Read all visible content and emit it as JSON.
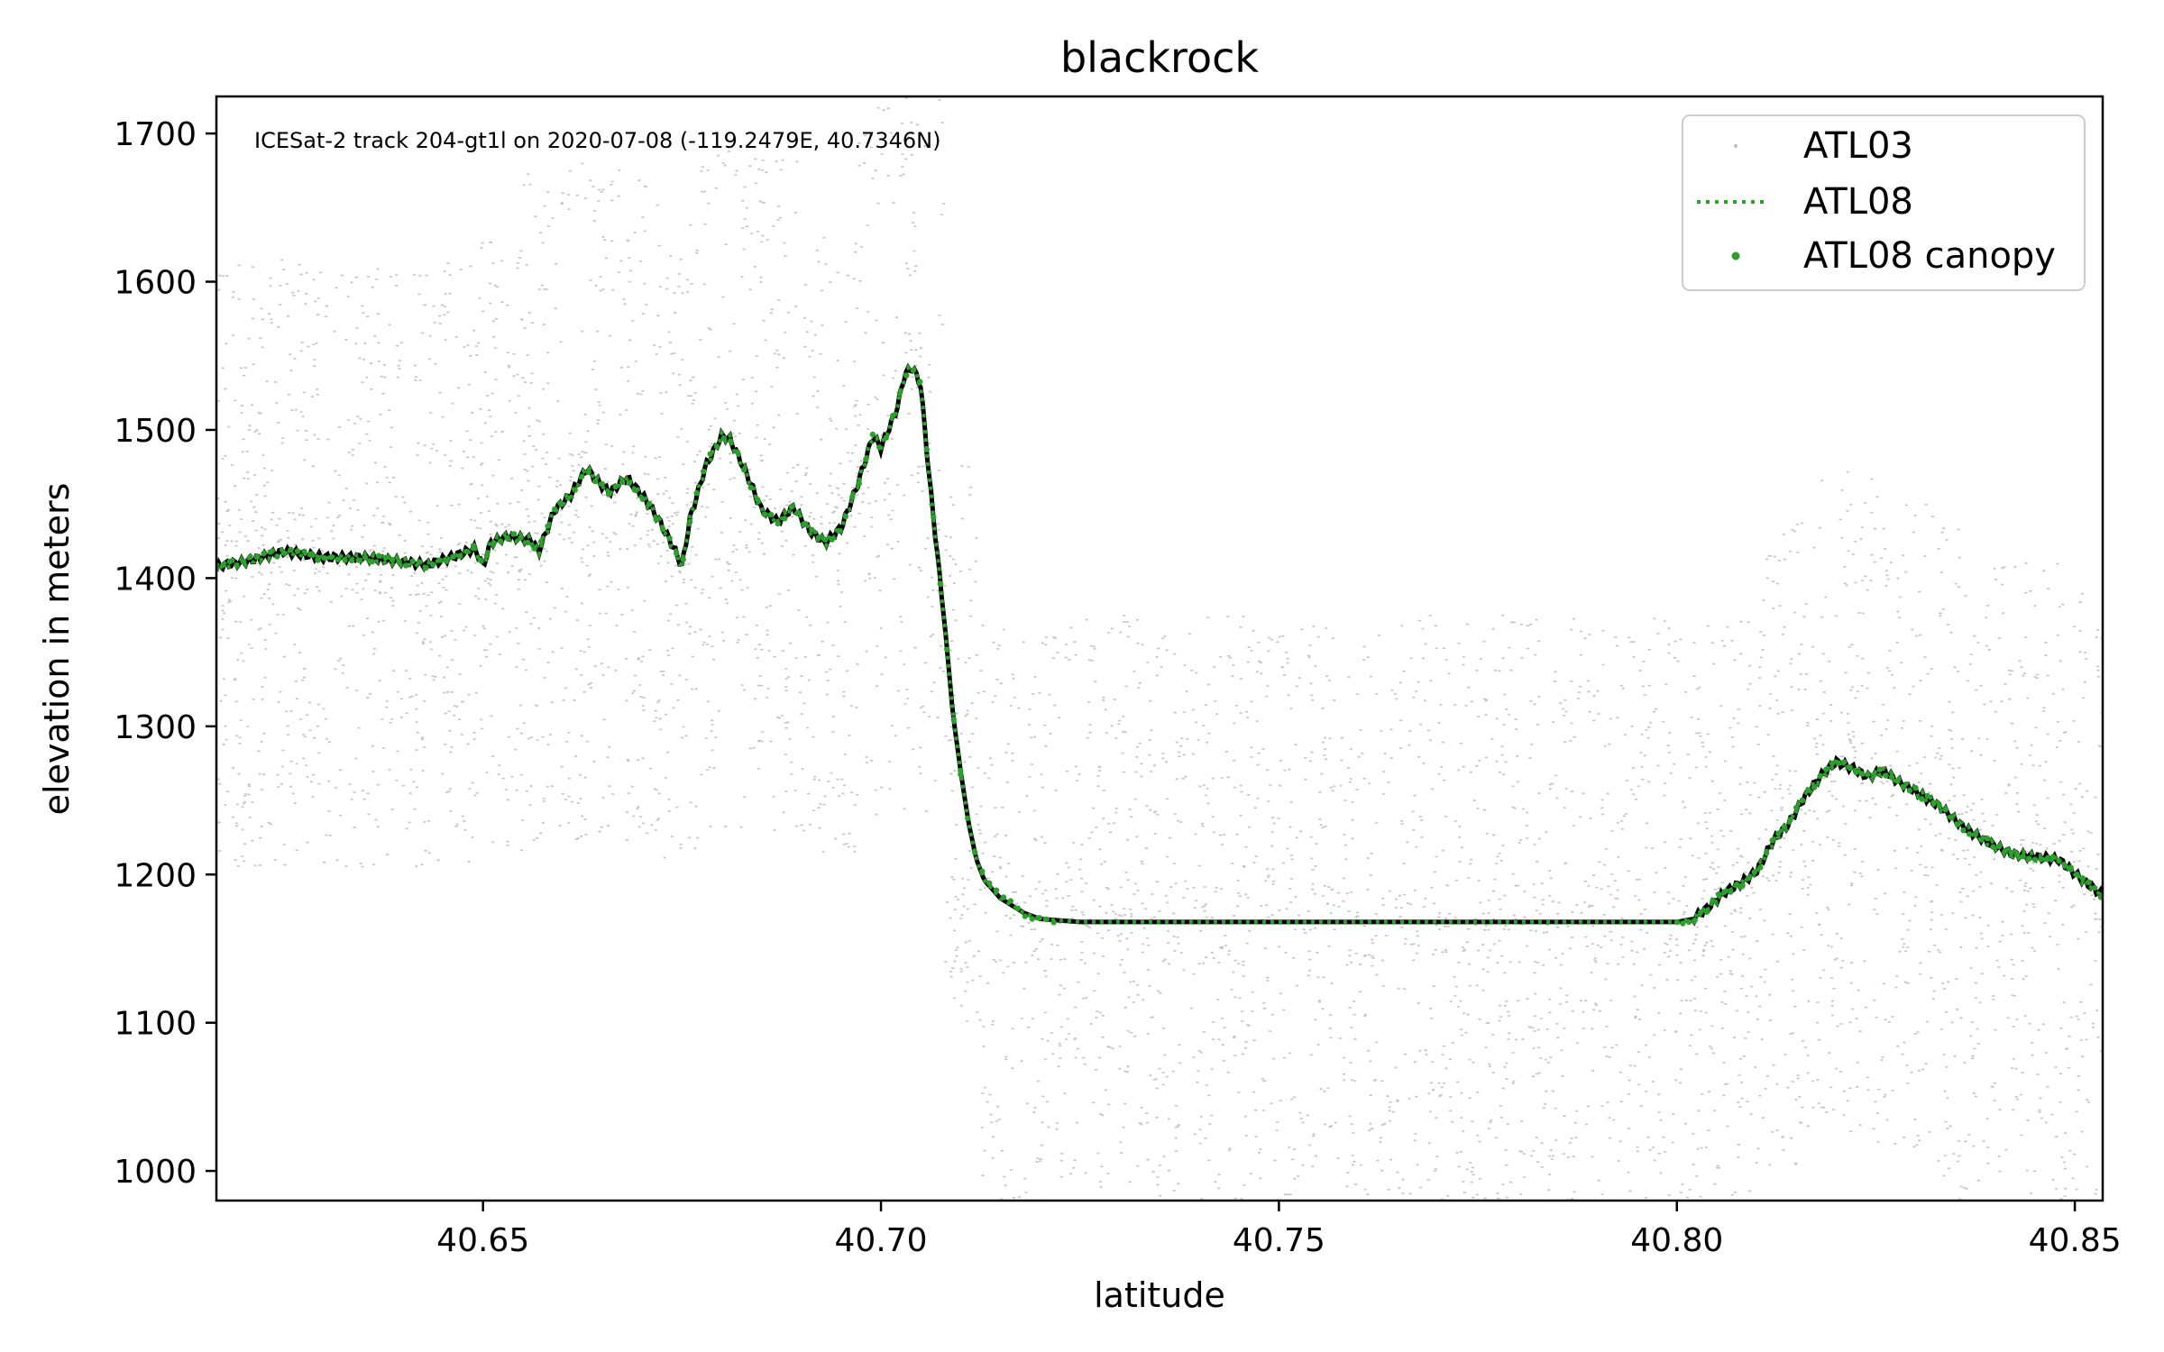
{
  "chart_data": {
    "type": "scatter",
    "title": "blackrock",
    "xlabel": "latitude",
    "ylabel": "elevation in meters",
    "annotation": "ICESat-2 track 204-gt1l on 2020-07-08 (-119.2479E, 40.7346N)",
    "xlim": [
      40.6165,
      40.8535
    ],
    "ylim": [
      980,
      1725
    ],
    "xticks": [
      40.65,
      40.7,
      40.75,
      40.8,
      40.85
    ],
    "xtick_labels": [
      "40.65",
      "40.70",
      "40.75",
      "40.80",
      "40.85"
    ],
    "yticks": [
      1000,
      1100,
      1200,
      1300,
      1400,
      1500,
      1600,
      1700
    ],
    "ytick_labels": [
      "1000",
      "1100",
      "1200",
      "1300",
      "1400",
      "1500",
      "1600",
      "1700"
    ],
    "grid": false,
    "legend_position": "top-right",
    "colors": {
      "atl03": "#808080",
      "atl08": "#2ca02c",
      "ground": "#000000"
    },
    "series": [
      {
        "name": "ATL03",
        "kind": "scatter-cloud",
        "description_only": true
      },
      {
        "name": "ATL08",
        "kind": "dotted-line"
      },
      {
        "name": "ATL08 canopy",
        "kind": "points"
      }
    ],
    "profile": {
      "x": [
        40.6165,
        40.62,
        40.625,
        40.63,
        40.635,
        40.64,
        40.643,
        40.646,
        40.649,
        40.65,
        40.651,
        40.653,
        40.656,
        40.657,
        40.659,
        40.661,
        40.663,
        40.665,
        40.666,
        40.668,
        40.67,
        40.672,
        40.674,
        40.675,
        40.676,
        40.678,
        40.68,
        40.681,
        40.683,
        40.685,
        40.687,
        40.689,
        40.691,
        40.693,
        40.695,
        40.697,
        40.699,
        40.7,
        40.702,
        40.703,
        40.704,
        40.705,
        40.706,
        40.707,
        40.708,
        40.709,
        40.71,
        40.711,
        40.712,
        40.713,
        40.715,
        40.718,
        40.72,
        40.725,
        40.73,
        40.74,
        40.75,
        40.76,
        40.77,
        40.78,
        40.79,
        40.8,
        40.802,
        40.804,
        40.806,
        40.808,
        40.81,
        40.812,
        40.814,
        40.816,
        40.818,
        40.82,
        40.822,
        40.824,
        40.826,
        40.828,
        40.83,
        40.833,
        40.836,
        40.839,
        40.842,
        40.845,
        40.848,
        40.851,
        40.8535
      ],
      "y": [
        1408,
        1411,
        1418,
        1414,
        1414,
        1411,
        1409,
        1414,
        1420,
        1408,
        1424,
        1428,
        1426,
        1418,
        1446,
        1456,
        1474,
        1462,
        1458,
        1468,
        1456,
        1440,
        1420,
        1408,
        1440,
        1476,
        1496,
        1494,
        1472,
        1446,
        1438,
        1448,
        1432,
        1424,
        1434,
        1462,
        1496,
        1488,
        1514,
        1538,
        1542,
        1530,
        1472,
        1420,
        1370,
        1310,
        1270,
        1235,
        1210,
        1196,
        1184,
        1174,
        1170,
        1168,
        1168,
        1168,
        1168,
        1168,
        1168,
        1168,
        1168,
        1168,
        1170,
        1178,
        1188,
        1194,
        1202,
        1222,
        1234,
        1252,
        1266,
        1276,
        1272,
        1266,
        1270,
        1262,
        1256,
        1246,
        1232,
        1222,
        1214,
        1212,
        1210,
        1196,
        1186
      ]
    }
  }
}
